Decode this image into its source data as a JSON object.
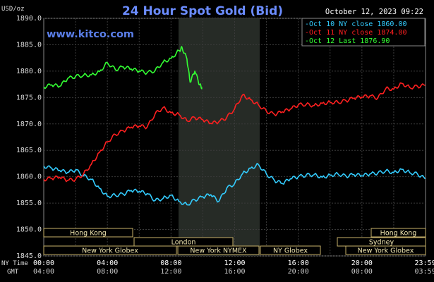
{
  "chart_data": {
    "type": "line",
    "title": "24 Hour Spot Gold (Bid)",
    "ylabel": "USD/oz",
    "date_stamp": "October 12, 2023 09:22",
    "site": "www.kitco.com",
    "ylim": [
      1845,
      1890
    ],
    "y_ticks": [
      "1890.0",
      "1885.0",
      "1880.0",
      "1875.0",
      "1870.0",
      "1865.0",
      "1860.0",
      "1855.0",
      "1850.0",
      "1845.0"
    ],
    "x_ticks": [
      {
        "ny": "00:00",
        "gmt": "04:00"
      },
      {
        "ny": "04:00",
        "gmt": "08:00"
      },
      {
        "ny": "08:00",
        "gmt": "12:00"
      },
      {
        "ny": "12:00",
        "gmt": "16:00"
      },
      {
        "ny": "16:00",
        "gmt": "20:00"
      },
      {
        "ny": "20:00",
        "gmt": "00:00"
      },
      {
        "ny": "23:59",
        "gmt": "03:59"
      }
    ],
    "time_rows": {
      "ny": "NY Time",
      "gmt": "GMT"
    },
    "sessions": [
      {
        "label": "Hong Kong"
      },
      {
        "label": "London"
      },
      {
        "label": "New York Globex"
      },
      {
        "label": "New York NYMEX"
      },
      {
        "label": "NY Globex"
      },
      {
        "label": "Hong Kong"
      },
      {
        "label": "Sydney"
      },
      {
        "label": "New York Globex"
      }
    ],
    "series": [
      {
        "name": "Oct 10 NY close 1860.00",
        "color": "#33ccff",
        "points": [
          [
            0,
            1862
          ],
          [
            0.5,
            1861.6
          ],
          [
            1,
            1861.2
          ],
          [
            1.5,
            1860.8
          ],
          [
            2,
            1861.3
          ],
          [
            2.5,
            1860.2
          ],
          [
            3,
            1859.5
          ],
          [
            3.5,
            1857.8
          ],
          [
            4,
            1856.3
          ],
          [
            4.5,
            1856.5
          ],
          [
            5,
            1856.7
          ],
          [
            5.5,
            1857.4
          ],
          [
            6,
            1857.2
          ],
          [
            6.5,
            1856.8
          ],
          [
            7,
            1855.5
          ],
          [
            7.5,
            1855.9
          ],
          [
            8,
            1856.5
          ],
          [
            8.5,
            1855.3
          ],
          [
            9,
            1854.7
          ],
          [
            9.5,
            1855.6
          ],
          [
            10,
            1856.2
          ],
          [
            10.5,
            1856.6
          ],
          [
            11,
            1855.3
          ],
          [
            11.5,
            1857.8
          ],
          [
            12,
            1858.7
          ],
          [
            12.5,
            1860.6
          ],
          [
            13,
            1861.6
          ],
          [
            13.5,
            1862.3
          ],
          [
            14,
            1860.5
          ],
          [
            14.5,
            1859.3
          ],
          [
            15,
            1858.7
          ],
          [
            15.5,
            1859.6
          ],
          [
            16,
            1860
          ],
          [
            16.5,
            1860.3
          ],
          [
            17,
            1860.4
          ],
          [
            17.5,
            1859.9
          ],
          [
            18,
            1860.3
          ],
          [
            18.5,
            1860.5
          ],
          [
            19,
            1860.1
          ],
          [
            19.5,
            1860.4
          ],
          [
            20,
            1860.2
          ],
          [
            20.5,
            1860.5
          ],
          [
            21,
            1860.7
          ],
          [
            21.5,
            1861.1
          ],
          [
            22,
            1860.8
          ],
          [
            22.5,
            1861.4
          ],
          [
            23,
            1860.8
          ],
          [
            23.5,
            1860.5
          ],
          [
            23.98,
            1859.6
          ]
        ]
      },
      {
        "name": "Oct 11 NY close 1874.00",
        "color": "#ff2020",
        "points": [
          [
            0,
            1859.5
          ],
          [
            0.5,
            1859.7
          ],
          [
            1,
            1859.9
          ],
          [
            1.5,
            1859.3
          ],
          [
            2,
            1859.5
          ],
          [
            2.5,
            1860.5
          ],
          [
            3,
            1862.4
          ],
          [
            3.5,
            1864.6
          ],
          [
            4,
            1866.6
          ],
          [
            4.5,
            1868
          ],
          [
            5,
            1868.7
          ],
          [
            5.5,
            1869.4
          ],
          [
            6,
            1869.6
          ],
          [
            6.5,
            1869.4
          ],
          [
            7,
            1871.9
          ],
          [
            7.5,
            1873.1
          ],
          [
            8,
            1872.1
          ],
          [
            8.5,
            1871.8
          ],
          [
            9,
            1870.6
          ],
          [
            9.5,
            1871.2
          ],
          [
            10,
            1870.8
          ],
          [
            10.5,
            1870.1
          ],
          [
            11,
            1870.4
          ],
          [
            11.5,
            1871.2
          ],
          [
            12,
            1872.9
          ],
          [
            12.5,
            1875.5
          ],
          [
            13,
            1874.6
          ],
          [
            13.5,
            1873.6
          ],
          [
            14,
            1872.4
          ],
          [
            14.5,
            1871.8
          ],
          [
            15,
            1872.3
          ],
          [
            15.5,
            1872.8
          ],
          [
            16,
            1873.6
          ],
          [
            16.5,
            1873.7
          ],
          [
            17,
            1873.5
          ],
          [
            17.5,
            1873.9
          ],
          [
            18,
            1874.1
          ],
          [
            18.5,
            1874.1
          ],
          [
            19,
            1874.4
          ],
          [
            19.5,
            1874.9
          ],
          [
            20,
            1875.1
          ],
          [
            20.5,
            1875.3
          ],
          [
            21,
            1874.9
          ],
          [
            21.5,
            1876.7
          ],
          [
            22,
            1876.6
          ],
          [
            22.5,
            1877.7
          ],
          [
            23,
            1876.9
          ],
          [
            23.5,
            1877.1
          ],
          [
            23.98,
            1877.3
          ]
        ]
      },
      {
        "name": "Oct 12 Last 1876.90",
        "color": "#33ff33",
        "points": [
          [
            0,
            1877
          ],
          [
            0.5,
            1877.4
          ],
          [
            1,
            1877.1
          ],
          [
            1.5,
            1878.6
          ],
          [
            2,
            1879
          ],
          [
            2.5,
            1879.2
          ],
          [
            3,
            1879.3
          ],
          [
            3.5,
            1879.9
          ],
          [
            4,
            1881.6
          ],
          [
            4.5,
            1880.3
          ],
          [
            5,
            1880.8
          ],
          [
            5.5,
            1880.4
          ],
          [
            6,
            1880
          ],
          [
            6.5,
            1879.7
          ],
          [
            7,
            1880.1
          ],
          [
            7.5,
            1881.7
          ],
          [
            8,
            1882.4
          ],
          [
            8.5,
            1883.9
          ],
          [
            8.7,
            1884.4
          ],
          [
            9,
            1882.3
          ],
          [
            9.2,
            1877.9
          ],
          [
            9.5,
            1880
          ],
          [
            9.8,
            1877.4
          ],
          [
            9.95,
            1876.9
          ]
        ]
      }
    ]
  }
}
